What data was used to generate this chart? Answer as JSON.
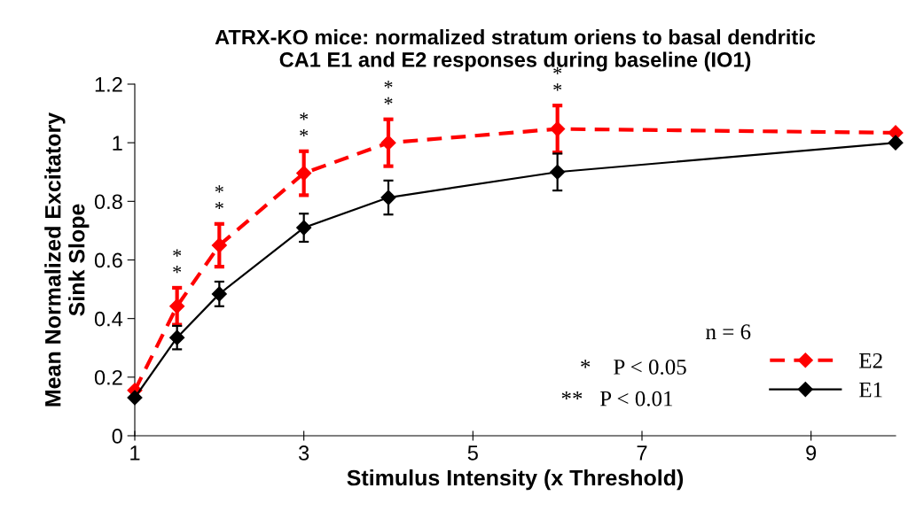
{
  "chart_data": {
    "type": "line",
    "title": "ATRX-KO mice: normalized stratum oriens to basal dendritic\nCA1 E1 and E2 responses during baseline (IO1)",
    "xlabel": "Stimulus Intensity (x Threshold)",
    "ylabel": "Mean Normalized Excitatory\nSink Slope",
    "x": [
      1,
      1.5,
      2,
      3,
      4,
      6,
      10
    ],
    "series": [
      {
        "name": "E2",
        "color": "#ff0000",
        "line_style": "dashed",
        "values": [
          0.155,
          0.442,
          0.65,
          0.896,
          1.0,
          1.047,
          1.034
        ],
        "errors": [
          null,
          0.063,
          0.073,
          0.075,
          0.08,
          0.08,
          null
        ]
      },
      {
        "name": "E1",
        "color": "#000000",
        "line_style": "solid",
        "values": [
          0.13,
          0.335,
          0.484,
          0.71,
          0.813,
          0.9,
          1.0
        ],
        "errors": [
          null,
          0.04,
          0.042,
          0.048,
          0.058,
          0.063,
          null
        ]
      }
    ],
    "marker": "diamond",
    "xlim": [
      1,
      10
    ],
    "xticks": [
      1,
      3,
      5,
      7,
      9
    ],
    "ylim": [
      0,
      1.2
    ],
    "yticks": [
      0,
      0.2,
      0.4,
      0.6,
      0.8,
      1,
      1.2
    ],
    "grid": false,
    "legend": "bottom right",
    "annotations": [
      {
        "text": "*\n*",
        "x": 1.5,
        "y": 0.505
      },
      {
        "text": "*\n*",
        "x": 2,
        "y": 0.723
      },
      {
        "text": "*\n*",
        "x": 3,
        "y": 0.971
      },
      {
        "text": "*\n*",
        "x": 4,
        "y": 1.08
      },
      {
        "text": "*\n*",
        "x": 6,
        "y": 1.127
      },
      "n = 6",
      "*    P < 0.05",
      "**   P < 0.01"
    ]
  }
}
